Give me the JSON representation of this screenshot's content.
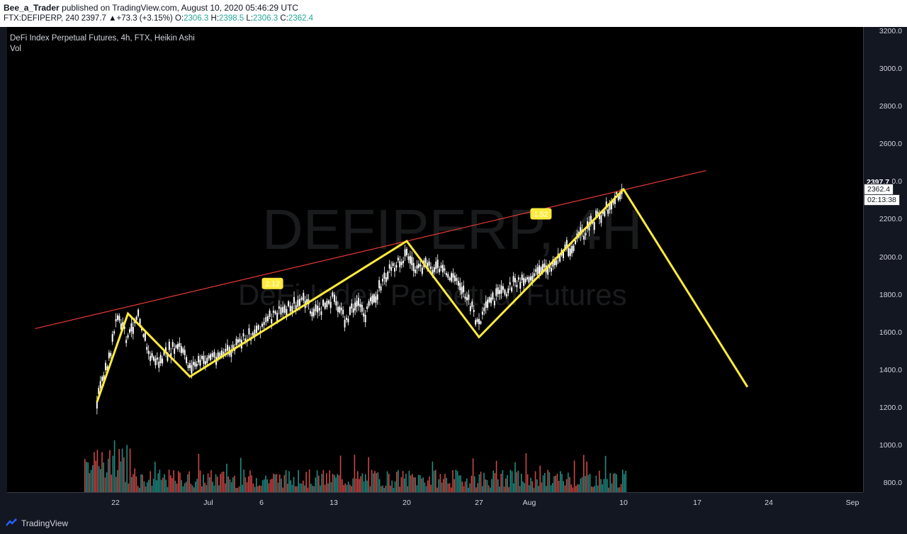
{
  "header": {
    "publisher": "Bee_a_Trader",
    "published_text": "published on TradingView.com, August 10, 2020 05:46:29 UTC",
    "symbol": "FTX:DEFIPERP, 240",
    "last": "2397.7",
    "change": "+73.3 (+3.15%)",
    "open_label": "O:",
    "open": "2306.3",
    "high_label": "H:",
    "high": "2398.5",
    "low_label": "L:",
    "low": "2306.3",
    "close_label": "C:",
    "close": "2362.4"
  },
  "chart_header": {
    "title": "DeFi Index Perpetual Futures, 4h, FTX, Heikin Ashi",
    "vol_label": "Vol"
  },
  "watermark": {
    "symbol": "DEFIPERP, 4H",
    "name": "DeFi Index Perpetual Futures"
  },
  "price_tags": {
    "last": "2397.7",
    "close": "2362.4",
    "countdown": "02:13:38"
  },
  "footer": {
    "brand": "TradingView"
  },
  "colors": {
    "up": "#26a69a",
    "down": "#ef5350",
    "candle": "#ffffff",
    "pattern": "#ffeb3b",
    "trendline": "#e53935"
  },
  "chart_data": {
    "type": "candlestick",
    "style": "Heikin Ashi",
    "y_axis": {
      "ticks": [
        "3200.0",
        "3000.0",
        "2800.0",
        "2600.0",
        "2400.0",
        "2200.0",
        "2000.0",
        "1800.0",
        "1600.0",
        "1400.0",
        "1200.0",
        "1000.0",
        "800.0"
      ],
      "range": [
        750,
        3250
      ]
    },
    "x_axis": {
      "ticks": [
        "22",
        "Jul",
        "6",
        "13",
        "20",
        "27",
        "Aug",
        "10",
        "17",
        "24",
        "Sep"
      ]
    },
    "zigzag": [
      {
        "date": "Jun 20",
        "price": 1230
      },
      {
        "date": "Jun 23",
        "price": 1700
      },
      {
        "date": "Jun 29",
        "price": 1365
      },
      {
        "date": "Jul 20",
        "price": 2085
      },
      {
        "date": "Jul 27",
        "price": 1575
      },
      {
        "date": "Aug 10",
        "price": 2360
      },
      {
        "date": "Aug 22",
        "price": 1310
      }
    ],
    "trendline": [
      {
        "date": "Jun 14",
        "price": 1620
      },
      {
        "date": "Aug 18",
        "price": 2460
      }
    ],
    "ratio_labels": [
      {
        "text": "2.12",
        "date": "Jul 7",
        "price": 1860
      },
      {
        "text": "1.52",
        "date": "Aug 2",
        "price": 2230
      }
    ],
    "price_path": [
      {
        "date": "Jun 20",
        "price": 1240
      },
      {
        "date": "Jun 21",
        "price": 1420
      },
      {
        "date": "Jun 22",
        "price": 1680
      },
      {
        "date": "Jun 23",
        "price": 1560
      },
      {
        "date": "Jun 24",
        "price": 1720
      },
      {
        "date": "Jun 25",
        "price": 1480
      },
      {
        "date": "Jun 26",
        "price": 1440
      },
      {
        "date": "Jun 27",
        "price": 1500
      },
      {
        "date": "Jun 28",
        "price": 1520
      },
      {
        "date": "Jun 29",
        "price": 1420
      },
      {
        "date": "Jun 30",
        "price": 1440
      },
      {
        "date": "Jul 1",
        "price": 1470
      },
      {
        "date": "Jul 3",
        "price": 1500
      },
      {
        "date": "Jul 4",
        "price": 1550
      },
      {
        "date": "Jul 6",
        "price": 1640
      },
      {
        "date": "Jul 8",
        "price": 1720
      },
      {
        "date": "Jul 10",
        "price": 1770
      },
      {
        "date": "Jul 11",
        "price": 1700
      },
      {
        "date": "Jul 13",
        "price": 1780
      },
      {
        "date": "Jul 14",
        "price": 1660
      },
      {
        "date": "Jul 15",
        "price": 1760
      },
      {
        "date": "Jul 16",
        "price": 1700
      },
      {
        "date": "Jul 17",
        "price": 1800
      },
      {
        "date": "Jul 18",
        "price": 1900
      },
      {
        "date": "Jul 19",
        "price": 1960
      },
      {
        "date": "Jul 20",
        "price": 2020
      },
      {
        "date": "Jul 21",
        "price": 1920
      },
      {
        "date": "Jul 22",
        "price": 1960
      },
      {
        "date": "Jul 23",
        "price": 1940
      },
      {
        "date": "Jul 24",
        "price": 1900
      },
      {
        "date": "Jul 25",
        "price": 1880
      },
      {
        "date": "Jul 26",
        "price": 1760
      },
      {
        "date": "Jul 27",
        "price": 1640
      },
      {
        "date": "Jul 28",
        "price": 1760
      },
      {
        "date": "Jul 29",
        "price": 1800
      },
      {
        "date": "Jul 30",
        "price": 1840
      },
      {
        "date": "Jul 31",
        "price": 1880
      },
      {
        "date": "Aug 1",
        "price": 1900
      },
      {
        "date": "Aug 2",
        "price": 1920
      },
      {
        "date": "Aug 3",
        "price": 1960
      },
      {
        "date": "Aug 4",
        "price": 2020
      },
      {
        "date": "Aug 5",
        "price": 2060
      },
      {
        "date": "Aug 6",
        "price": 2120
      },
      {
        "date": "Aug 7",
        "price": 2180
      },
      {
        "date": "Aug 8",
        "price": 2240
      },
      {
        "date": "Aug 9",
        "price": 2300
      },
      {
        "date": "Aug 10",
        "price": 2362
      }
    ]
  }
}
